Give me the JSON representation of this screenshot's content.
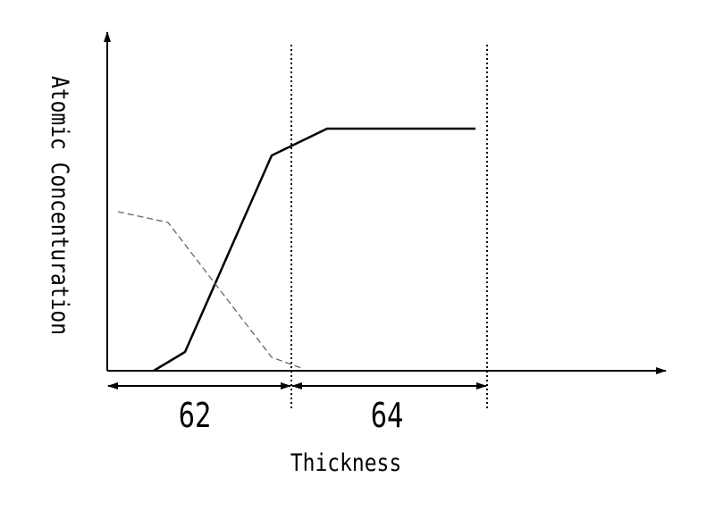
{
  "y_axis_label": "Atomic Concenturation",
  "x_axis_label": "Thickness",
  "regions": [
    "62",
    "64"
  ]
}
